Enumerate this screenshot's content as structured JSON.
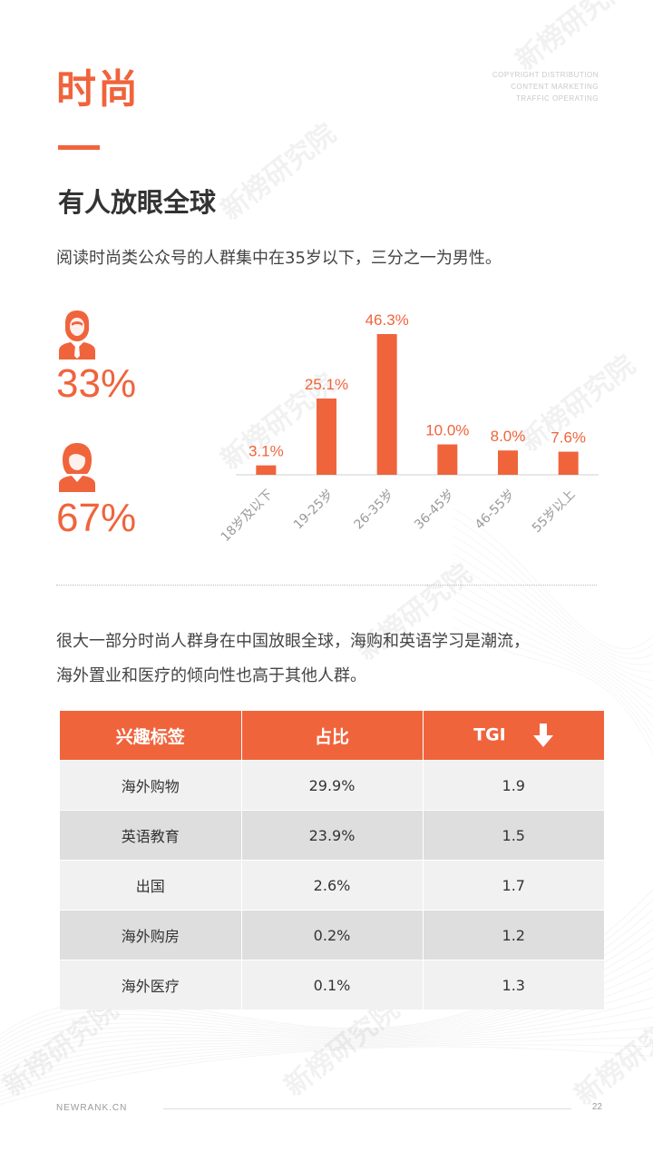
{
  "header": {
    "title": "时尚",
    "copyright_lines": [
      "COPYRIGHT DISTRIBUTION",
      "CONTENT MARKETING",
      "TRAFFIC OPERATING"
    ]
  },
  "section": {
    "subtitle": "有人放眼全球",
    "description": "阅读时尚类公众号的人群集中在35岁以下，三分之一为男性。"
  },
  "gender": {
    "male_icon": "male-user-icon",
    "male_pct": "33%",
    "female_icon": "female-user-icon",
    "female_pct": "67%"
  },
  "chart_data": {
    "type": "bar",
    "categories": [
      "18岁及以下",
      "19-25岁",
      "26-35岁",
      "36-45岁",
      "46-55岁",
      "55岁以上"
    ],
    "values": [
      3.1,
      25.1,
      46.3,
      10.0,
      8.0,
      7.6
    ],
    "value_labels": [
      "3.1%",
      "25.1%",
      "46.3%",
      "10.0%",
      "8.0%",
      "7.6%"
    ],
    "ylim": [
      0,
      50
    ],
    "grid": false,
    "bar_color": "#f0643c"
  },
  "paragraph": {
    "lines": [
      "很大一部分时尚人群身在中国放眼全球，海购和英语学习是潮流，",
      "海外置业和医疗的倾向性也高于其他人群。"
    ]
  },
  "table": {
    "headers": [
      "兴趣标签",
      "占比",
      "TGI"
    ],
    "sort_icon": "arrow-down-icon",
    "rows": [
      [
        "海外购物",
        "29.9%",
        "1.9"
      ],
      [
        "英语教育",
        "23.9%",
        "1.5"
      ],
      [
        "出国",
        "2.6%",
        "1.7"
      ],
      [
        "海外购房",
        "0.2%",
        "1.2"
      ],
      [
        "海外医疗",
        "0.1%",
        "1.3"
      ]
    ]
  },
  "watermark": {
    "text": "新榜研究院"
  },
  "footer": {
    "site": "NEWRANK.CN",
    "page": "22"
  },
  "colors": {
    "accent": "#f0643c",
    "row_light": "#f1f1f1",
    "row_dark": "#dedede"
  }
}
